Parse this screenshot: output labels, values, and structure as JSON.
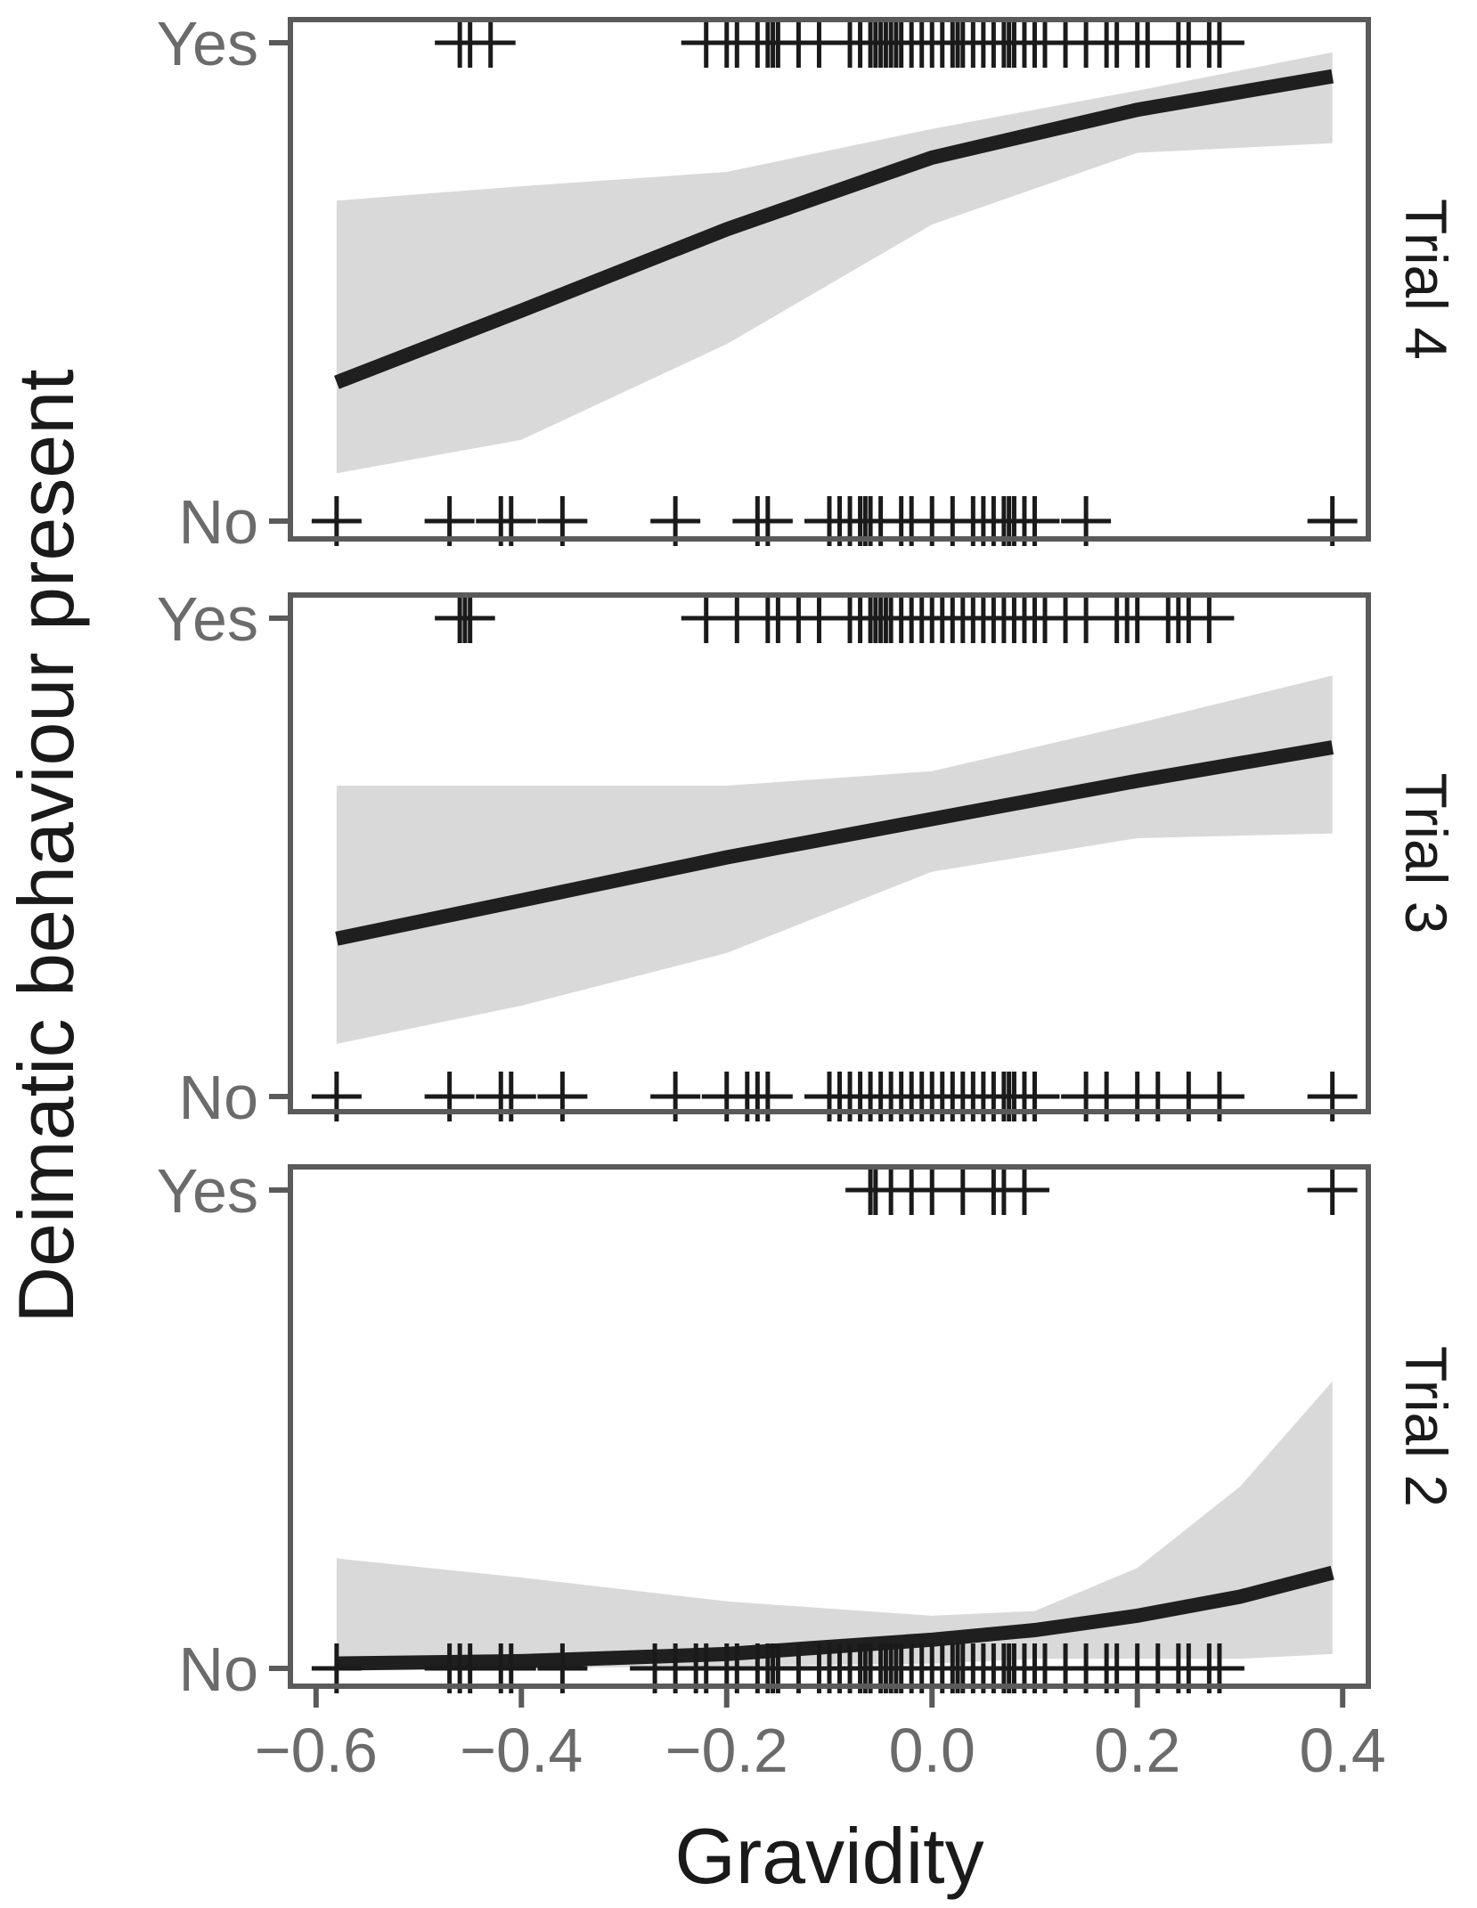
{
  "chart_data": {
    "type": "line",
    "xlabel": "Gravidity",
    "ylabel": "Deimatic behaviour present",
    "xlim": [
      -0.625,
      0.425
    ],
    "ylim": [
      0,
      1
    ],
    "x_ticks": [
      -0.6,
      -0.4,
      -0.2,
      0.0,
      0.2,
      0.4
    ],
    "x_tick_labels": [
      "−0.6",
      "−0.4",
      "−0.2",
      "0.0",
      "0.2",
      "0.4"
    ],
    "y_ticks": [
      0,
      1
    ],
    "y_tick_labels": [
      "No",
      "Yes"
    ],
    "grid": false,
    "legend": "none",
    "colors": {
      "line": "#1f1f1f",
      "ribbon": "#d9d9d9",
      "frame": "#5a5a5a",
      "points": "#1a1a1a"
    },
    "panels": [
      {
        "label": "Trial 4",
        "fit": {
          "x": [
            -0.58,
            -0.4,
            -0.2,
            0.0,
            0.2,
            0.39
          ],
          "y": [
            0.29,
            0.44,
            0.61,
            0.76,
            0.86,
            0.93
          ],
          "lower": [
            0.1,
            0.17,
            0.37,
            0.62,
            0.77,
            0.79
          ],
          "upper": [
            0.67,
            0.7,
            0.73,
            0.82,
            0.9,
            0.98
          ]
        },
        "points_yes": [
          -0.46,
          -0.45,
          -0.43,
          -0.22,
          -0.2,
          -0.19,
          -0.17,
          -0.16,
          -0.155,
          -0.15,
          -0.13,
          -0.11,
          -0.08,
          -0.07,
          -0.06,
          -0.055,
          -0.05,
          -0.045,
          -0.04,
          -0.035,
          -0.03,
          -0.02,
          -0.01,
          0.0,
          0.01,
          0.02,
          0.025,
          0.03,
          0.04,
          0.05,
          0.06,
          0.07,
          0.075,
          0.08,
          0.09,
          0.1,
          0.11,
          0.13,
          0.15,
          0.17,
          0.18,
          0.2,
          0.21,
          0.24,
          0.25,
          0.27,
          0.28
        ],
        "points_no": [
          -0.58,
          -0.47,
          -0.42,
          -0.41,
          -0.36,
          -0.25,
          -0.17,
          -0.16,
          -0.1,
          -0.09,
          -0.08,
          -0.07,
          -0.065,
          -0.06,
          -0.05,
          -0.03,
          -0.02,
          0.0,
          0.02,
          0.04,
          0.05,
          0.06,
          0.07,
          0.075,
          0.08,
          0.09,
          0.1,
          0.15,
          0.39
        ]
      },
      {
        "label": "Trial 3",
        "fit": {
          "x": [
            -0.58,
            -0.4,
            -0.2,
            0.0,
            0.2,
            0.39
          ],
          "y": [
            0.33,
            0.41,
            0.5,
            0.58,
            0.66,
            0.73
          ],
          "lower": [
            0.11,
            0.19,
            0.3,
            0.47,
            0.54,
            0.55
          ],
          "upper": [
            0.65,
            0.65,
            0.65,
            0.68,
            0.78,
            0.88
          ]
        },
        "points_yes": [
          -0.46,
          -0.455,
          -0.45,
          -0.22,
          -0.19,
          -0.16,
          -0.15,
          -0.13,
          -0.11,
          -0.08,
          -0.07,
          -0.06,
          -0.055,
          -0.05,
          -0.045,
          -0.04,
          -0.03,
          -0.02,
          -0.01,
          0.0,
          0.01,
          0.02,
          0.03,
          0.04,
          0.05,
          0.06,
          0.07,
          0.08,
          0.09,
          0.1,
          0.11,
          0.13,
          0.15,
          0.18,
          0.19,
          0.2,
          0.23,
          0.24,
          0.25,
          0.27
        ],
        "points_no": [
          -0.58,
          -0.47,
          -0.42,
          -0.41,
          -0.36,
          -0.25,
          -0.2,
          -0.18,
          -0.17,
          -0.16,
          -0.1,
          -0.09,
          -0.08,
          -0.07,
          -0.06,
          -0.05,
          -0.04,
          -0.03,
          -0.02,
          -0.01,
          0.0,
          0.01,
          0.02,
          0.03,
          0.04,
          0.05,
          0.06,
          0.07,
          0.075,
          0.08,
          0.09,
          0.1,
          0.15,
          0.17,
          0.2,
          0.22,
          0.25,
          0.28,
          0.39
        ]
      },
      {
        "label": "Trial 2",
        "fit": {
          "x": [
            -0.58,
            -0.4,
            -0.2,
            0.0,
            0.1,
            0.2,
            0.3,
            0.39
          ],
          "y": [
            0.01,
            0.015,
            0.03,
            0.06,
            0.08,
            0.11,
            0.15,
            0.2
          ],
          "lower": [
            0.0,
            0.0,
            0.005,
            0.01,
            0.02,
            0.02,
            0.02,
            0.03
          ],
          "upper": [
            0.23,
            0.19,
            0.14,
            0.11,
            0.12,
            0.21,
            0.38,
            0.6
          ]
        },
        "points_yes": [
          -0.06,
          -0.055,
          -0.04,
          -0.02,
          0.0,
          0.03,
          0.06,
          0.07,
          0.09,
          0.39
        ],
        "points_no": [
          -0.58,
          -0.47,
          -0.46,
          -0.45,
          -0.42,
          -0.41,
          -0.36,
          -0.27,
          -0.25,
          -0.23,
          -0.22,
          -0.2,
          -0.19,
          -0.17,
          -0.16,
          -0.155,
          -0.15,
          -0.13,
          -0.11,
          -0.1,
          -0.09,
          -0.08,
          -0.07,
          -0.065,
          -0.06,
          -0.05,
          -0.045,
          -0.04,
          -0.035,
          -0.03,
          -0.02,
          -0.01,
          0.0,
          0.01,
          0.02,
          0.025,
          0.03,
          0.04,
          0.05,
          0.06,
          0.07,
          0.075,
          0.08,
          0.09,
          0.1,
          0.11,
          0.13,
          0.15,
          0.17,
          0.18,
          0.2,
          0.22,
          0.24,
          0.25,
          0.27,
          0.28
        ]
      }
    ]
  }
}
